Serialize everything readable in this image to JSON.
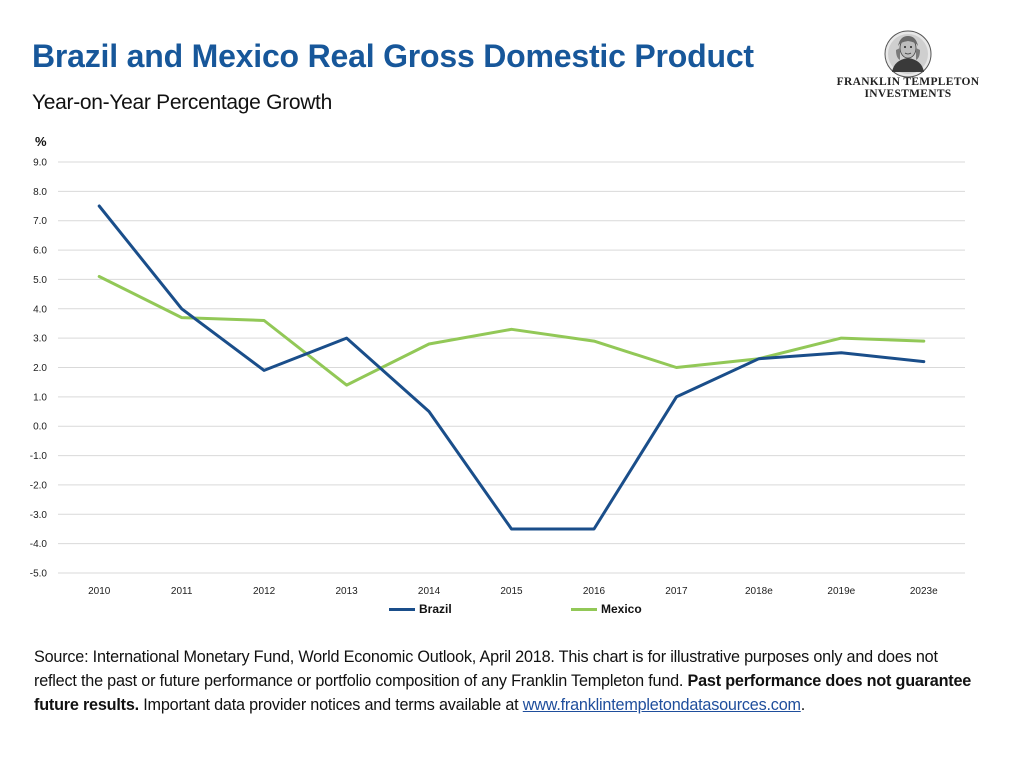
{
  "header": {
    "title": "Brazil and Mexico Real Gross Domestic Product",
    "subtitle": "Year-on-Year Percentage Growth"
  },
  "logo": {
    "line1": "FRANKLIN TEMPLETON",
    "line2": "INVESTMENTS",
    "icon": "benjamin-franklin-portrait-icon"
  },
  "chart_data": {
    "type": "line",
    "title": "Brazil and Mexico Real Gross Domestic Product",
    "subtitle": "Year-on-Year Percentage Growth",
    "ylabel": "%",
    "xlabel": "",
    "ylim": [
      -5.0,
      9.0
    ],
    "yticks": [
      "9.0",
      "8.0",
      "7.0",
      "6.0",
      "5.0",
      "4.0",
      "3.0",
      "2.0",
      "1.0",
      "0.0",
      "-1.0",
      "-2.0",
      "-3.0",
      "-4.0",
      "-5.0"
    ],
    "categories": [
      "2010",
      "2011",
      "2012",
      "2013",
      "2014",
      "2015",
      "2016",
      "2017",
      "2018e",
      "2019e",
      "2023e"
    ],
    "grid": true,
    "legend_position": "bottom",
    "series": [
      {
        "name": "Brazil",
        "color": "#1a4e8a",
        "values": [
          7.5,
          4.0,
          1.9,
          3.0,
          0.5,
          -3.5,
          -3.5,
          1.0,
          2.3,
          2.5,
          2.2
        ]
      },
      {
        "name": "Mexico",
        "color": "#92c857",
        "values": [
          5.1,
          3.7,
          3.6,
          1.4,
          2.8,
          3.3,
          2.9,
          2.0,
          2.3,
          3.0,
          2.9
        ]
      }
    ]
  },
  "footnote": {
    "text1": "Source: International Monetary Fund, World Economic Outlook, April 2018. This chart is for illustrative purposes only and does not reflect the past or future performance or portfolio composition of any Franklin Templeton fund. ",
    "bold": "Past performance does not guarantee future results.",
    "text2": " Important data provider notices and terms available at ",
    "link": "www.franklintempletondatasources.com",
    "text3": "."
  }
}
